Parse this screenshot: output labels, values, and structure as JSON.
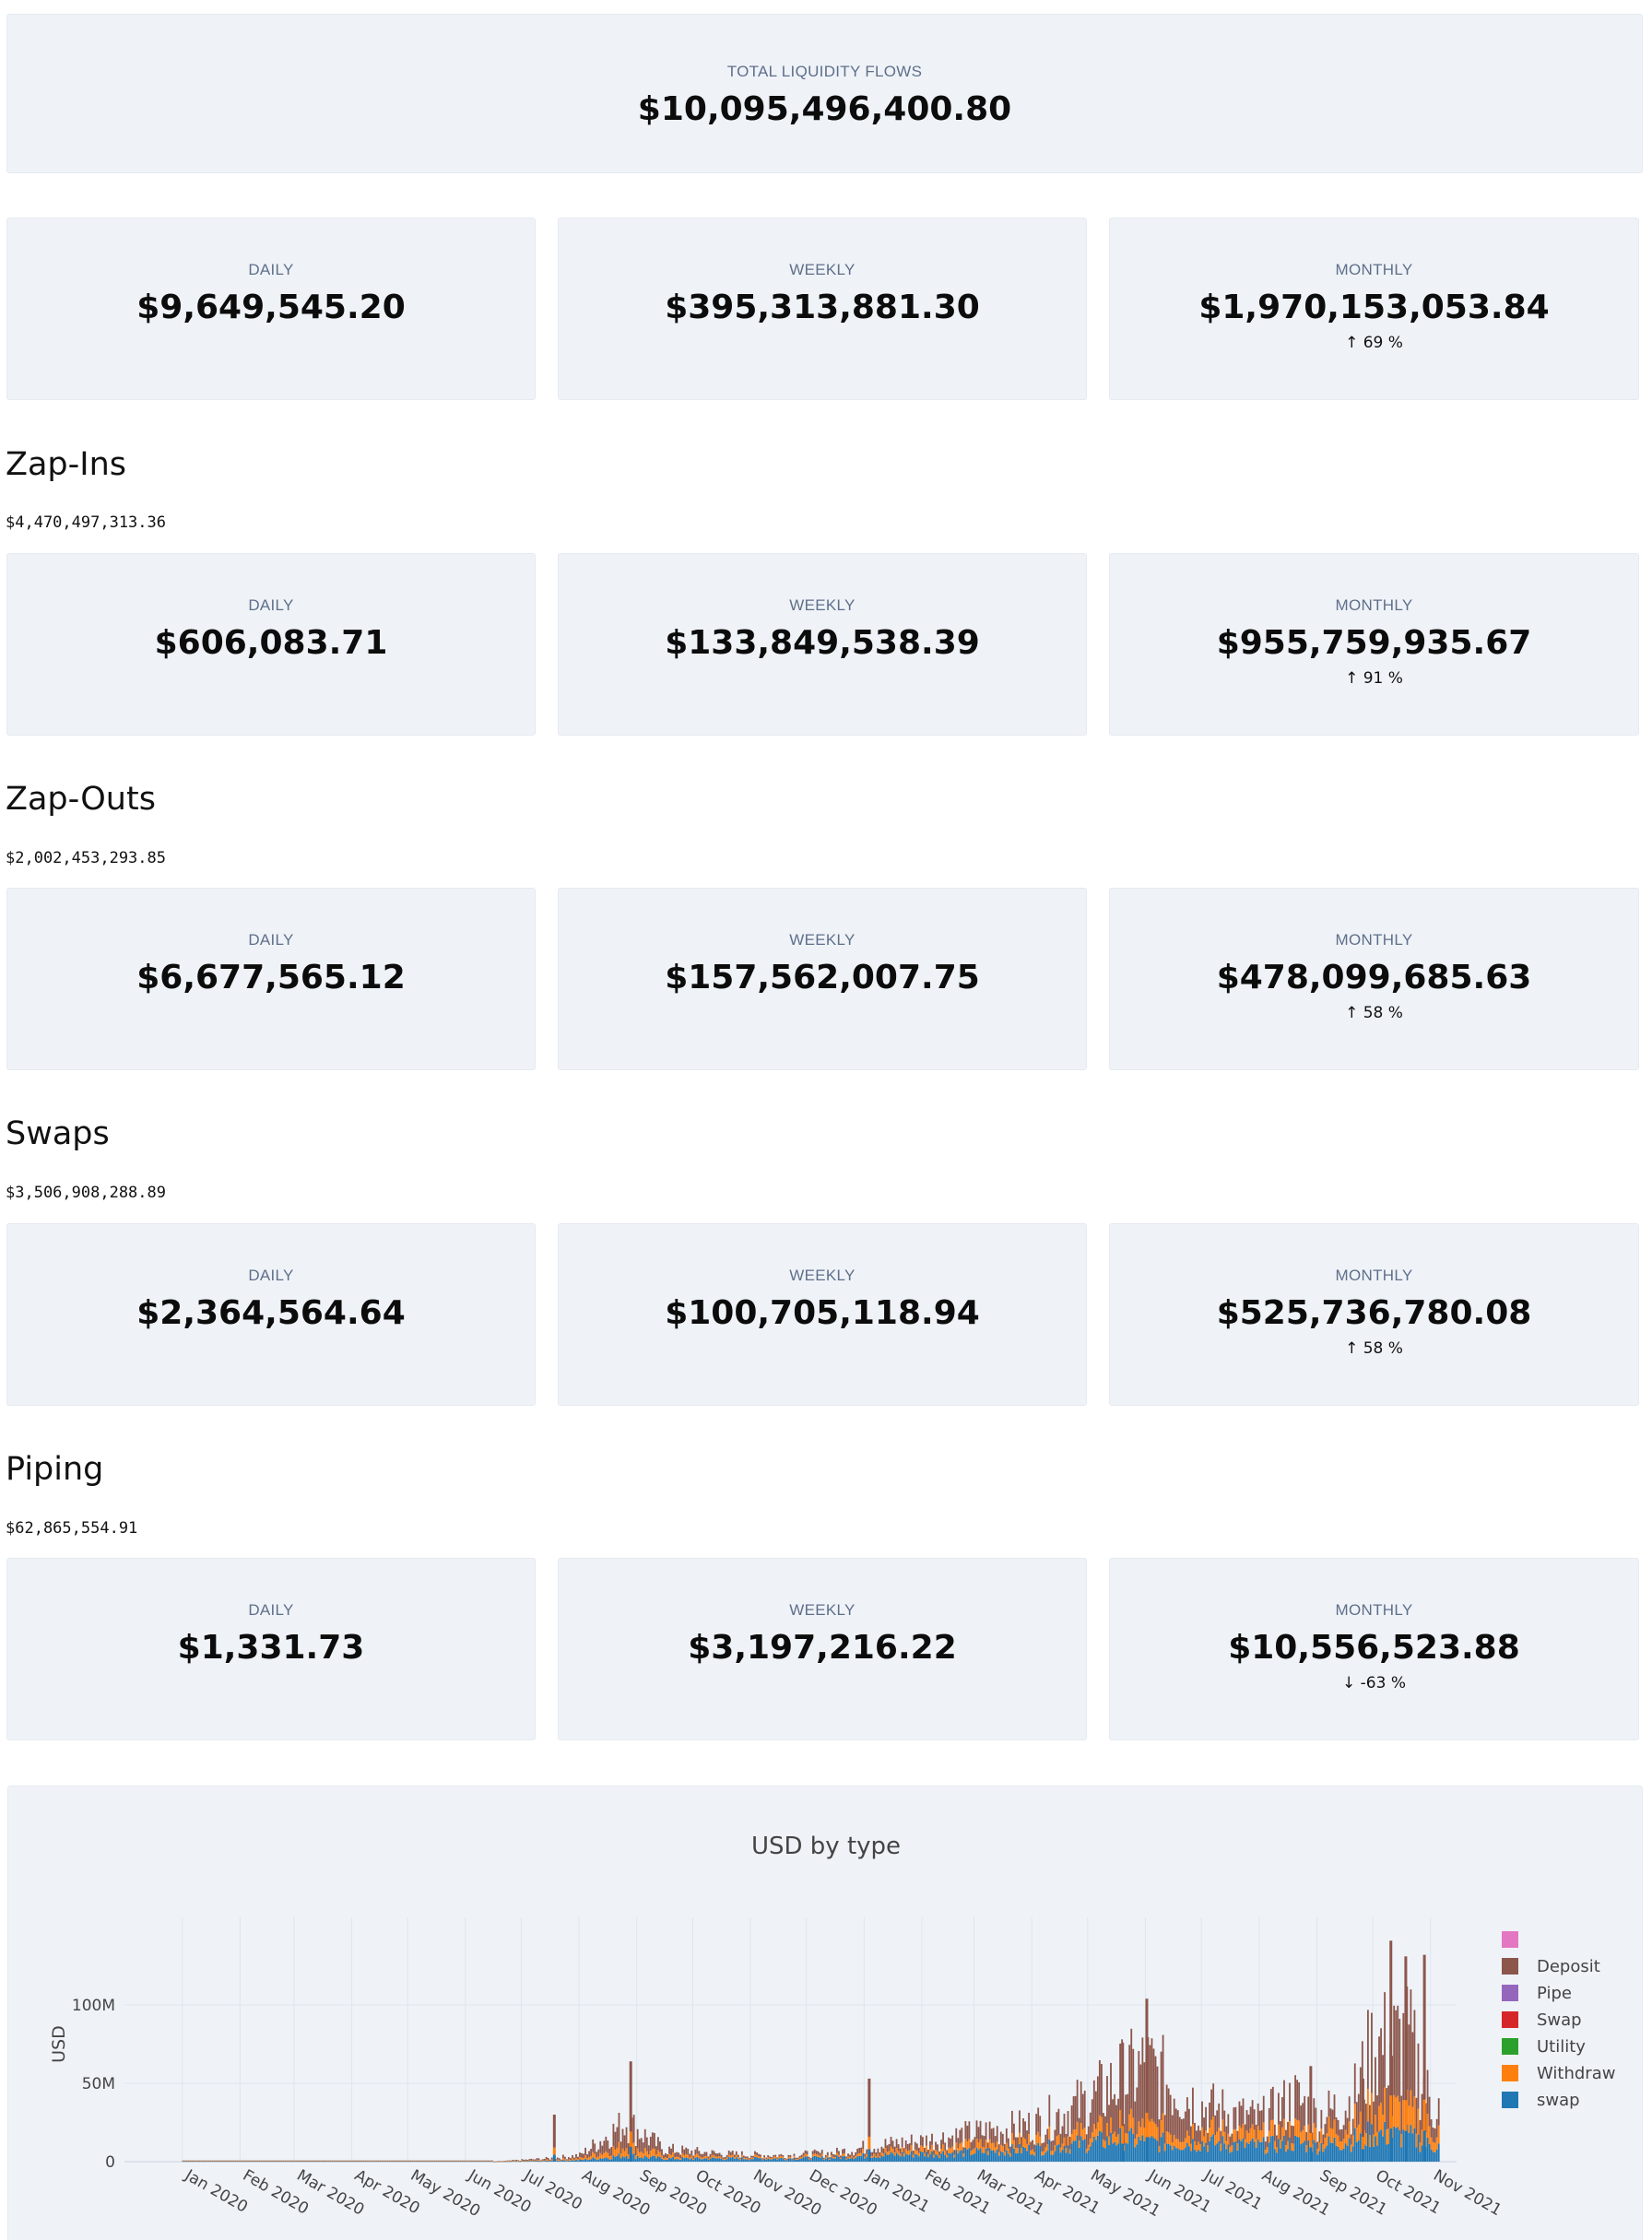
{
  "total": {
    "label": "TOTAL LIQUIDITY FLOWS",
    "value": "$10,095,496,400.80"
  },
  "overall": {
    "daily": {
      "label": "DAILY",
      "value": "$9,649,545.20"
    },
    "weekly": {
      "label": "WEEKLY",
      "value": "$395,313,881.30"
    },
    "monthly": {
      "label": "MONTHLY",
      "value": "$1,970,153,053.84",
      "change": "↑ 69 %"
    }
  },
  "sections": [
    {
      "title": "Zap-Ins",
      "total": "$4,470,497,313.36",
      "daily": {
        "label": "DAILY",
        "value": "$606,083.71"
      },
      "weekly": {
        "label": "WEEKLY",
        "value": "$133,849,538.39"
      },
      "monthly": {
        "label": "MONTHLY",
        "value": "$955,759,935.67",
        "change": "↑ 91 %"
      }
    },
    {
      "title": "Zap-Outs",
      "total": "$2,002,453,293.85",
      "daily": {
        "label": "DAILY",
        "value": "$6,677,565.12"
      },
      "weekly": {
        "label": "WEEKLY",
        "value": "$157,562,007.75"
      },
      "monthly": {
        "label": "MONTHLY",
        "value": "$478,099,685.63",
        "change": "↑ 58 %"
      }
    },
    {
      "title": "Swaps",
      "total": "$3,506,908,288.89",
      "daily": {
        "label": "DAILY",
        "value": "$2,364,564.64"
      },
      "weekly": {
        "label": "WEEKLY",
        "value": "$100,705,118.94"
      },
      "monthly": {
        "label": "MONTHLY",
        "value": "$525,736,780.08",
        "change": "↑ 58 %"
      }
    },
    {
      "title": "Piping",
      "total": "$62,865,554.91",
      "daily": {
        "label": "DAILY",
        "value": "$1,331.73"
      },
      "weekly": {
        "label": "WEEKLY",
        "value": "$3,197,216.22"
      },
      "monthly": {
        "label": "MONTHLY",
        "value": "$10,556,523.88",
        "change": "↓ -63 %"
      }
    }
  ],
  "chart_data": {
    "type": "bar",
    "title": "USD by type",
    "ylabel": "USD",
    "xlabel": "",
    "barmode": "stack",
    "ylim": [
      0,
      150000000
    ],
    "xlim": [
      "2019-12-01",
      "2021-11-15"
    ],
    "grid": true,
    "legend_position": "right",
    "yticks": [
      {
        "value": 0,
        "label": "0"
      },
      {
        "value": 50000000,
        "label": "50M"
      },
      {
        "value": 100000000,
        "label": "100M"
      }
    ],
    "xticks": [
      {
        "date": "2020-01-01",
        "label": "Jan 2020"
      },
      {
        "date": "2020-02-01",
        "label": "Feb 2020"
      },
      {
        "date": "2020-03-01",
        "label": "Mar 2020"
      },
      {
        "date": "2020-04-01",
        "label": "Apr 2020"
      },
      {
        "date": "2020-05-01",
        "label": "May 2020"
      },
      {
        "date": "2020-06-01",
        "label": "Jun 2020"
      },
      {
        "date": "2020-07-01",
        "label": "Jul 2020"
      },
      {
        "date": "2020-08-01",
        "label": "Aug 2020"
      },
      {
        "date": "2020-09-01",
        "label": "Sep 2020"
      },
      {
        "date": "2020-10-01",
        "label": "Oct 2020"
      },
      {
        "date": "2020-11-01",
        "label": "Nov 2020"
      },
      {
        "date": "2020-12-01",
        "label": "Dec 2020"
      },
      {
        "date": "2021-01-01",
        "label": "Jan 2021"
      },
      {
        "date": "2021-02-01",
        "label": "Feb 2021"
      },
      {
        "date": "2021-03-01",
        "label": "Mar 2021"
      },
      {
        "date": "2021-04-01",
        "label": "Apr 2021"
      },
      {
        "date": "2021-05-01",
        "label": "May 2021"
      },
      {
        "date": "2021-06-01",
        "label": "Jun 2021"
      },
      {
        "date": "2021-07-01",
        "label": "Jul 2021"
      },
      {
        "date": "2021-08-01",
        "label": "Aug 2021"
      },
      {
        "date": "2021-09-01",
        "label": "Sep 2021"
      },
      {
        "date": "2021-10-01",
        "label": "Oct 2021"
      },
      {
        "date": "2021-11-01",
        "label": "Nov 2021"
      }
    ],
    "legend": [
      {
        "name": "",
        "color": "#e377c2"
      },
      {
        "name": "Deposit",
        "color": "#8c564b"
      },
      {
        "name": "Pipe",
        "color": "#9467bd"
      },
      {
        "name": "Swap",
        "color": "#d62728"
      },
      {
        "name": "Utility",
        "color": "#2ca02c"
      },
      {
        "name": "Withdraw",
        "color": "#ff7f0e"
      },
      {
        "name": "swap",
        "color": "#1f77b4"
      }
    ],
    "series": [
      {
        "name": "swap",
        "color": "#1f77b4",
        "dates": [
          "2020-07-15",
          "2020-08-01",
          "2020-08-26",
          "2020-09-15",
          "2020-10-15",
          "2020-11-15",
          "2020-12-15",
          "2021-01-05",
          "2021-02-01",
          "2021-03-01",
          "2021-04-01",
          "2021-05-01",
          "2021-05-20",
          "2021-06-01",
          "2021-07-01",
          "2021-08-01",
          "2021-08-20",
          "2021-09-01",
          "2021-09-20",
          "2021-10-01",
          "2021-10-20",
          "2021-11-01"
        ],
        "values": [
          500000,
          1000000,
          4000000,
          2000000,
          2000000,
          2000000,
          2500000,
          4000000,
          5000000,
          6000000,
          8000000,
          12000000,
          15000000,
          12000000,
          12000000,
          10000000,
          12000000,
          10000000,
          14000000,
          18000000,
          16000000,
          10000000
        ]
      },
      {
        "name": "Withdraw",
        "color": "#ff7f0e",
        "dates": [
          "2020-07-15",
          "2020-08-01",
          "2020-08-26",
          "2020-09-15",
          "2020-10-15",
          "2020-11-15",
          "2020-12-15",
          "2021-01-05",
          "2021-02-01",
          "2021-03-01",
          "2021-04-01",
          "2021-05-01",
          "2021-05-20",
          "2021-06-01",
          "2021-07-01",
          "2021-08-01",
          "2021-08-20",
          "2021-09-01",
          "2021-09-20",
          "2021-10-01",
          "2021-10-20",
          "2021-11-01"
        ],
        "values": [
          500000,
          1000000,
          6000000,
          2000000,
          1000000,
          1000000,
          1000000,
          2000000,
          3000000,
          4000000,
          5000000,
          6000000,
          8000000,
          8000000,
          8000000,
          6000000,
          8000000,
          8000000,
          10000000,
          15000000,
          15000000,
          10000000
        ]
      },
      {
        "name": "Deposit",
        "color": "#8c564b",
        "dates": [
          "2020-07-15",
          "2020-08-01",
          "2020-08-26",
          "2020-09-15",
          "2020-10-15",
          "2020-11-15",
          "2020-12-15",
          "2021-01-05",
          "2021-02-01",
          "2021-03-01",
          "2021-04-01",
          "2021-05-01",
          "2021-05-20",
          "2021-06-01",
          "2021-07-01",
          "2021-08-01",
          "2021-08-20",
          "2021-09-01",
          "2021-09-20",
          "2021-10-01",
          "2021-10-20",
          "2021-11-01"
        ],
        "values": [
          1000000,
          2000000,
          15000000,
          4000000,
          2000000,
          1000000,
          2000000,
          4000000,
          5000000,
          8000000,
          10000000,
          20000000,
          30000000,
          40000000,
          15000000,
          10000000,
          20000000,
          10000000,
          15000000,
          40000000,
          45000000,
          15000000
        ]
      }
    ],
    "peaks": [
      {
        "date": "2020-07-18",
        "total": 30000000
      },
      {
        "date": "2020-08-28",
        "total": 64000000
      },
      {
        "date": "2021-01-03",
        "total": 53000000
      },
      {
        "date": "2021-05-19",
        "total": 76000000
      },
      {
        "date": "2021-06-01",
        "total": 104000000
      },
      {
        "date": "2021-08-28",
        "total": 61000000
      },
      {
        "date": "2021-09-25",
        "total": 53000000
      },
      {
        "date": "2021-10-10",
        "total": 141000000
      },
      {
        "date": "2021-10-18",
        "total": 131000000
      },
      {
        "date": "2021-10-28",
        "total": 132000000
      }
    ]
  }
}
